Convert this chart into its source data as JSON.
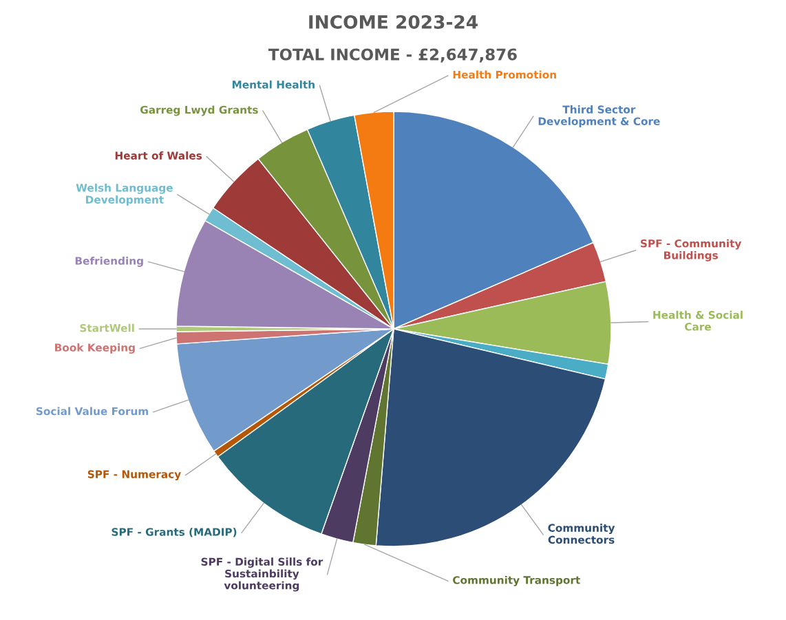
{
  "chart_data": {
    "type": "pie",
    "title": "INCOME 2023-24",
    "subtitle": "TOTAL INCOME - £2,647,876",
    "categories": [
      "Third Sector\nDevelopment & Core",
      "SPF - Community\nBuildings",
      "Health & Social\nCare",
      null,
      "Community\nConnectors",
      "Community Transport",
      "SPF - Digital Sills for\nSustainbility\nvolunteering",
      "SPF - Grants (MADIP)",
      "SPF - Numeracy",
      "Social Value Forum",
      "Book Keeping",
      "StartWell",
      "Befriending",
      "Welsh Language\nDevelopment",
      "Heart of Wales",
      "Garreg Lwyd Grants",
      "Mental Health",
      "Health Promotion"
    ],
    "values": [
      18.5,
      3.0,
      6.1,
      1.1,
      22.6,
      1.7,
      2.4,
      9.6,
      0.5,
      8.4,
      0.9,
      0.4,
      8.1,
      1.1,
      4.9,
      4.2,
      3.6,
      2.9
    ],
    "colors": [
      "#4f81bd",
      "#c0504d",
      "#9bbb59",
      "#4bacc6",
      "#2c4d75",
      "#5f7530",
      "#4d3b62",
      "#276a7c",
      "#b65708",
      "#729aca",
      "#cd7371",
      "#afc97a",
      "#9983b5",
      "#6fbdd1",
      "#9e3a38",
      "#77933c",
      "#31859c",
      "#f47b12"
    ],
    "legend": false
  }
}
